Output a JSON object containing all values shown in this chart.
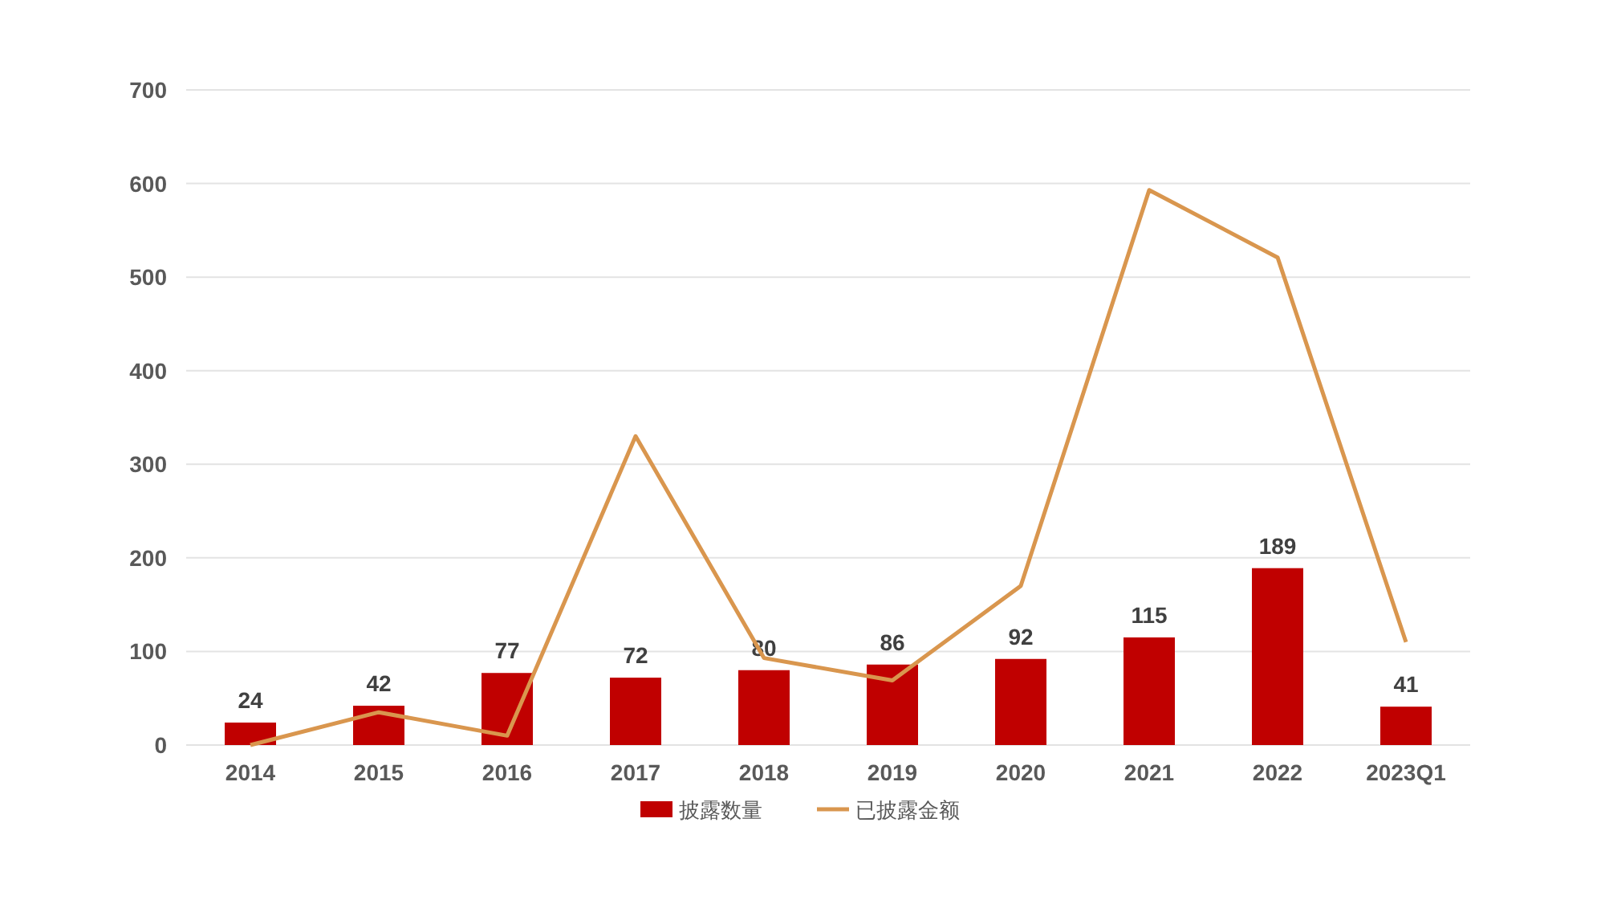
{
  "chart_data": {
    "type": "bar",
    "categories": [
      "2014",
      "2015",
      "2016",
      "2017",
      "2018",
      "2019",
      "2020",
      "2021",
      "2022",
      "2023Q1"
    ],
    "series": [
      {
        "name": "披露数量",
        "color": "#c00000",
        "values": [
          24,
          42,
          77,
          72,
          80,
          86,
          92,
          115,
          189,
          41
        ],
        "value_labels": [
          "24",
          "42",
          "77",
          "72",
          "80",
          "86",
          "92",
          "115",
          "189",
          "41"
        ]
      },
      {
        "name": "已披露金额",
        "type": "line",
        "color": "#d9964e",
        "values": [
          0,
          35,
          10,
          330,
          93,
          69,
          170,
          593,
          521,
          110
        ]
      }
    ],
    "ylim": [
      0,
      700
    ],
    "yticks": [
      0,
      100,
      200,
      300,
      400,
      500,
      600,
      700
    ],
    "grid": "y",
    "legend": "bottom"
  }
}
